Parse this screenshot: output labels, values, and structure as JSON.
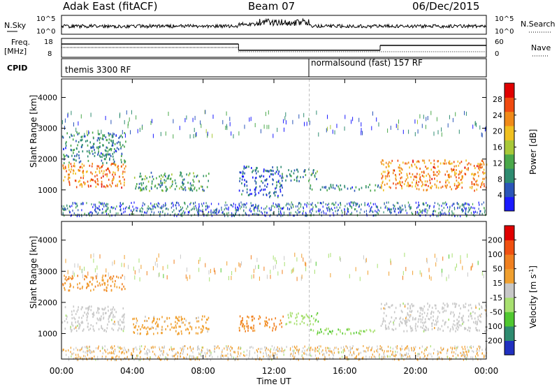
{
  "header": {
    "station": "Adak East (fitACF)",
    "beam": "Beam 07",
    "date": "06/Dec/2015"
  },
  "nsky_panel": {
    "label": "N.Sky",
    "ticks": [
      "10^5",
      "10^0"
    ],
    "right_label": "N.Search",
    "right_ticks": [
      "10^5",
      "10^0"
    ]
  },
  "freq_panel": {
    "label_line1": "Freq.",
    "label_line2": "[MHz]",
    "ticks": [
      "18",
      "8"
    ],
    "right_label": "Nave",
    "right_ticks": [
      "60",
      "0"
    ]
  },
  "cpid_panel": {
    "label": "CPID",
    "programs": [
      {
        "name": "themis 3300 RF",
        "start_hour": 0
      },
      {
        "name": "normalsound (fast) 157 RF",
        "start_hour": 14
      }
    ]
  },
  "chart_data": [
    {
      "type": "heatmap",
      "title": "",
      "xlabel": "Time UT",
      "ylabel": "Slant Range [km]",
      "x_range_hours": [
        0,
        24
      ],
      "x_ticks": [
        "00:00",
        "04:00",
        "08:00",
        "12:00",
        "16:00",
        "20:00",
        "00:00"
      ],
      "y_range_km": [
        180,
        4600
      ],
      "y_ticks": [
        "1000",
        "2000",
        "3000",
        "4000"
      ],
      "colorbar": {
        "label": "Power [dB]",
        "ticks": [
          "4",
          "8",
          "12",
          "16",
          "20",
          "24",
          "28"
        ],
        "range": [
          0,
          30
        ],
        "colors": [
          "#1a1aff",
          "#2a55b8",
          "#2e8b70",
          "#4aa84a",
          "#a8c838",
          "#f0c020",
          "#f08a18",
          "#f04a10",
          "#e00000"
        ]
      },
      "regions": [
        {
          "t0": 0.0,
          "t1": 3.6,
          "r0": 1100,
          "r1": 1900,
          "value": 22
        },
        {
          "t0": 0.0,
          "t1": 3.6,
          "r0": 1900,
          "r1": 2900,
          "value": 8
        },
        {
          "t0": 4.0,
          "t1": 8.3,
          "r0": 1000,
          "r1": 1600,
          "value": 10
        },
        {
          "t0": 10.0,
          "t1": 12.5,
          "r0": 800,
          "r1": 1800,
          "value": 6
        },
        {
          "t0": 12.6,
          "t1": 14.5,
          "r0": 1300,
          "r1": 1700,
          "value": 9
        },
        {
          "t0": 14.0,
          "t1": 18.0,
          "r0": 1000,
          "r1": 1200,
          "value": 8
        },
        {
          "t0": 18.0,
          "t1": 24.0,
          "r0": 1000,
          "r1": 2000,
          "value": 22
        }
      ]
    },
    {
      "type": "heatmap",
      "title": "",
      "xlabel": "Time UT",
      "ylabel": "Slant Range [km]",
      "x_range_hours": [
        0,
        24
      ],
      "x_ticks": [
        "00:00",
        "04:00",
        "08:00",
        "12:00",
        "16:00",
        "20:00",
        "00:00"
      ],
      "y_range_km": [
        180,
        4600
      ],
      "y_ticks": [
        "1000",
        "2000",
        "3000",
        "4000"
      ],
      "colorbar": {
        "label": "Velocity [m s^-1]",
        "ticks": [
          "200",
          "100",
          "50",
          "15",
          "-15",
          "-50",
          "-100",
          "-200"
        ],
        "range": [
          -250,
          250
        ],
        "colors": [
          "#2030c0",
          "#2e8b70",
          "#50c830",
          "#a8e070",
          "#c8c8c8",
          "#f0a030",
          "#f08020",
          "#f05010",
          "#e00000"
        ]
      },
      "regions": [
        {
          "t0": 0.0,
          "t1": 3.6,
          "r0": 1100,
          "r1": 1900,
          "value": 0
        },
        {
          "t0": 0.0,
          "t1": 3.6,
          "r0": 2400,
          "r1": 2900,
          "value": 80
        },
        {
          "t0": 4.0,
          "t1": 8.3,
          "r0": 1000,
          "r1": 1600,
          "value": 50
        },
        {
          "t0": 10.0,
          "t1": 12.5,
          "r0": 1100,
          "r1": 1600,
          "value": 100
        },
        {
          "t0": 12.6,
          "t1": 14.5,
          "r0": 1300,
          "r1": 1700,
          "value": -60
        },
        {
          "t0": 14.0,
          "t1": 18.0,
          "r0": 1000,
          "r1": 1200,
          "value": -70
        },
        {
          "t0": 18.0,
          "t1": 24.0,
          "r0": 1100,
          "r1": 2000,
          "value": 0
        }
      ]
    }
  ]
}
